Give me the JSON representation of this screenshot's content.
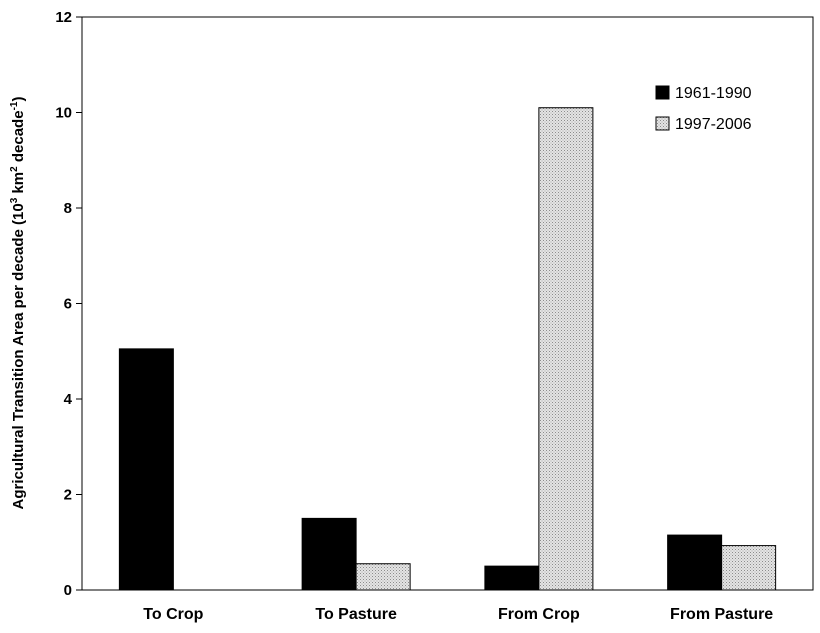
{
  "chart_data": {
    "type": "bar",
    "categories": [
      "To Crop",
      "To Pasture",
      "From Crop",
      "From Pasture"
    ],
    "series": [
      {
        "name": "1961-1990",
        "values": [
          5.05,
          1.5,
          0.5,
          1.15
        ],
        "color": "#000000"
      },
      {
        "name": "1997-2006",
        "values": [
          0,
          0.55,
          10.1,
          0.93
        ],
        "color": "#d9d9d9"
      }
    ],
    "ylabel": {
      "text": "Agricultural Transition Area per decade (10",
      "sup1": "3",
      "mid1": " km",
      "sup2": "2",
      "mid2": " decade",
      "sup3": "-1",
      "end": ")"
    },
    "xlabel": "",
    "ylim": [
      0,
      12
    ],
    "yticks": [
      0,
      2,
      4,
      6,
      8,
      10,
      12
    ],
    "grid": false,
    "legend_position": "top-right"
  }
}
